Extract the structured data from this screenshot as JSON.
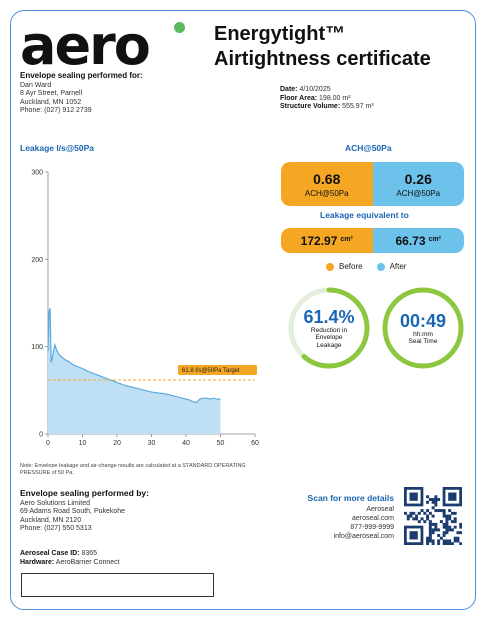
{
  "logo": {
    "text": "aero",
    "dot_color": "#5cb85c"
  },
  "title": {
    "line1": "Energytight™",
    "line2": "Airtightness certificate"
  },
  "client": {
    "heading": "Envelope sealing performed for:",
    "name": "Dan Ward",
    "address1": "8 Ayr Street, Parnell",
    "address2": "Auckland, MN 1052",
    "phone": "Phone: (027) 912 2739"
  },
  "meta": {
    "date_label": "Date:",
    "date_value": "4/10/2025",
    "floor_label": "Floor Area:",
    "floor_value": "198.00 m²",
    "volume_label": "Structure Volume:",
    "volume_value": "555.97 m³"
  },
  "sections": {
    "leakage_chart": "Leakage l/s@50Pa",
    "ach": "ACH@50Pa",
    "leakage_equivalent": "Leakage equivalent to"
  },
  "chart_data": {
    "type": "area",
    "x": [
      0,
      0.3,
      0.6,
      0.9,
      1.2,
      1.5,
      2,
      2.5,
      3,
      4,
      5,
      6,
      7,
      8,
      10,
      12,
      14,
      16,
      18,
      20,
      22,
      24,
      26,
      28,
      30,
      32,
      34,
      36,
      38,
      40,
      41,
      42,
      43,
      44,
      45,
      46,
      47,
      48,
      49,
      50
    ],
    "y": [
      95,
      140,
      144,
      82,
      86,
      93,
      102,
      96,
      92,
      88,
      85,
      83,
      80,
      78,
      75,
      71,
      68,
      65,
      62,
      59,
      56,
      54,
      52,
      50,
      48,
      47,
      46,
      44,
      42,
      40,
      39,
      37,
      36,
      40,
      41,
      41,
      40,
      41,
      40,
      40
    ],
    "xlim": [
      0,
      60
    ],
    "ylim": [
      0,
      300
    ],
    "x_ticks": [
      0,
      10,
      20,
      30,
      40,
      50,
      60
    ],
    "y_ticks": [
      0,
      100,
      200,
      300
    ],
    "target_value": 61.8,
    "target_label": "61.8 l/s@50Pa Target",
    "fill_color": "#bfe0f4",
    "line_color": "#5aa9de",
    "target_color": "#f5a623",
    "grid": false
  },
  "note": "Note: Envelope leakage and air-change results are calculated at a STANDARD OPERATING PRESSURE of 50 Pa.",
  "ach": {
    "before_value": "0.68",
    "before_label": "ACH@50Pa",
    "after_value": "0.26",
    "after_label": "ACH@50Pa"
  },
  "leakage": {
    "before_value": "172.97",
    "before_unit": "cm²",
    "after_value": "66.73",
    "after_unit": "cm²"
  },
  "legend": {
    "before": "Before",
    "after": "After",
    "before_color": "#f5a623",
    "after_color": "#6cc2ea"
  },
  "gauges": {
    "reduction_value": "61.4%",
    "reduction_fraction": 0.614,
    "reduction_label1": "Reduction in",
    "reduction_label2": "Envelope",
    "reduction_label3": "Leakage",
    "time_value": "00:49",
    "time_label1": "hh:mm",
    "time_label2": "Seal Time",
    "ring_color": "#8dc63f"
  },
  "provider": {
    "heading": "Envelope sealing performed by:",
    "name": "Aero Solutions Limited",
    "address1": "69 Adams Road South, Pukekohe",
    "address2": "Auckland, MN 2120",
    "phone": "Phone: (027) 550 5313"
  },
  "case": {
    "case_label": "Aeroseal Case ID:",
    "case_value": "8365",
    "hardware_label": "Hardware:",
    "hardware_value": "AeroBarrier Connect"
  },
  "scan": {
    "heading": "Scan for more details",
    "company": "Aeroseal",
    "website": "aeroseal.com",
    "phone": "877-999-9999",
    "email": "info@aeroseal.com"
  }
}
